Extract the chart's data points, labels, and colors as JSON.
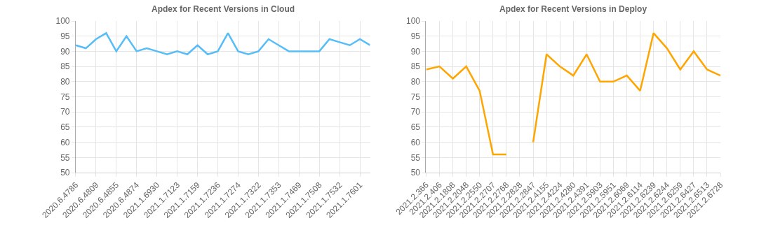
{
  "chart_data": [
    {
      "type": "line",
      "title": "Apdex for Recent Versions in Cloud",
      "categories": [
        "2020.6.4786",
        null,
        "2020.6.4809",
        null,
        "2020.6.4855",
        null,
        "2020.6.4874",
        null,
        "2021.1.6930",
        null,
        "2021.1.7123",
        null,
        "2021.1.7159",
        null,
        "2021.1.7236",
        null,
        "2021.1.7274",
        null,
        "2021.1.7322",
        null,
        "2021.1.7353",
        null,
        "2021.1.7469",
        null,
        "2021.1.7508",
        null,
        "2021.1.7532",
        null,
        "2021.1.7601",
        null
      ],
      "series": [
        {
          "color": "#56bdf9",
          "values": [
            92,
            91,
            94,
            96,
            90,
            95,
            90,
            91,
            90,
            89,
            90,
            89,
            92,
            89,
            90,
            96,
            90,
            89,
            90,
            94,
            92,
            90,
            90,
            90,
            90,
            94,
            93,
            92,
            94,
            92
          ]
        }
      ],
      "ylim": [
        50,
        100
      ],
      "yticks": [
        50,
        55,
        60,
        65,
        70,
        75,
        80,
        85,
        90,
        95,
        100
      ],
      "grid": true,
      "marker": "none",
      "line_style": "solid"
    },
    {
      "type": "line",
      "title": "Apdex for Recent Versions in Deploy",
      "categories": [
        "2021.2.366",
        "2021.2.406",
        "2021.2.1808",
        "2021.2.2048",
        "2021.2.2550",
        "2021.2.2707",
        "2021.2.2768",
        "2021.2.2828",
        "2021.2.2847",
        "2021.2.4155",
        "2021.2.4224",
        "2021.2.4280",
        "2021.2.4391",
        "2021.2.5903",
        "2021.2.5951",
        "2021.2.6069",
        "2021.2.6114",
        "2021.2.6239",
        "2021.2.6244",
        "2021.2.6259",
        "2021.2.6427",
        "2021.2.6513",
        "2021.2.6728"
      ],
      "series": [
        {
          "color": "#ffa500",
          "values": [
            84,
            85,
            81,
            85,
            77,
            56,
            56,
            null,
            60,
            89,
            85,
            82,
            89,
            80,
            80,
            82,
            77,
            96,
            91,
            84,
            90,
            84,
            82
          ]
        }
      ],
      "ylim": [
        50,
        100
      ],
      "yticks": [
        50,
        55,
        60,
        65,
        70,
        75,
        80,
        85,
        90,
        95,
        100
      ],
      "grid": true,
      "marker": "none",
      "line_style": "solid"
    }
  ]
}
